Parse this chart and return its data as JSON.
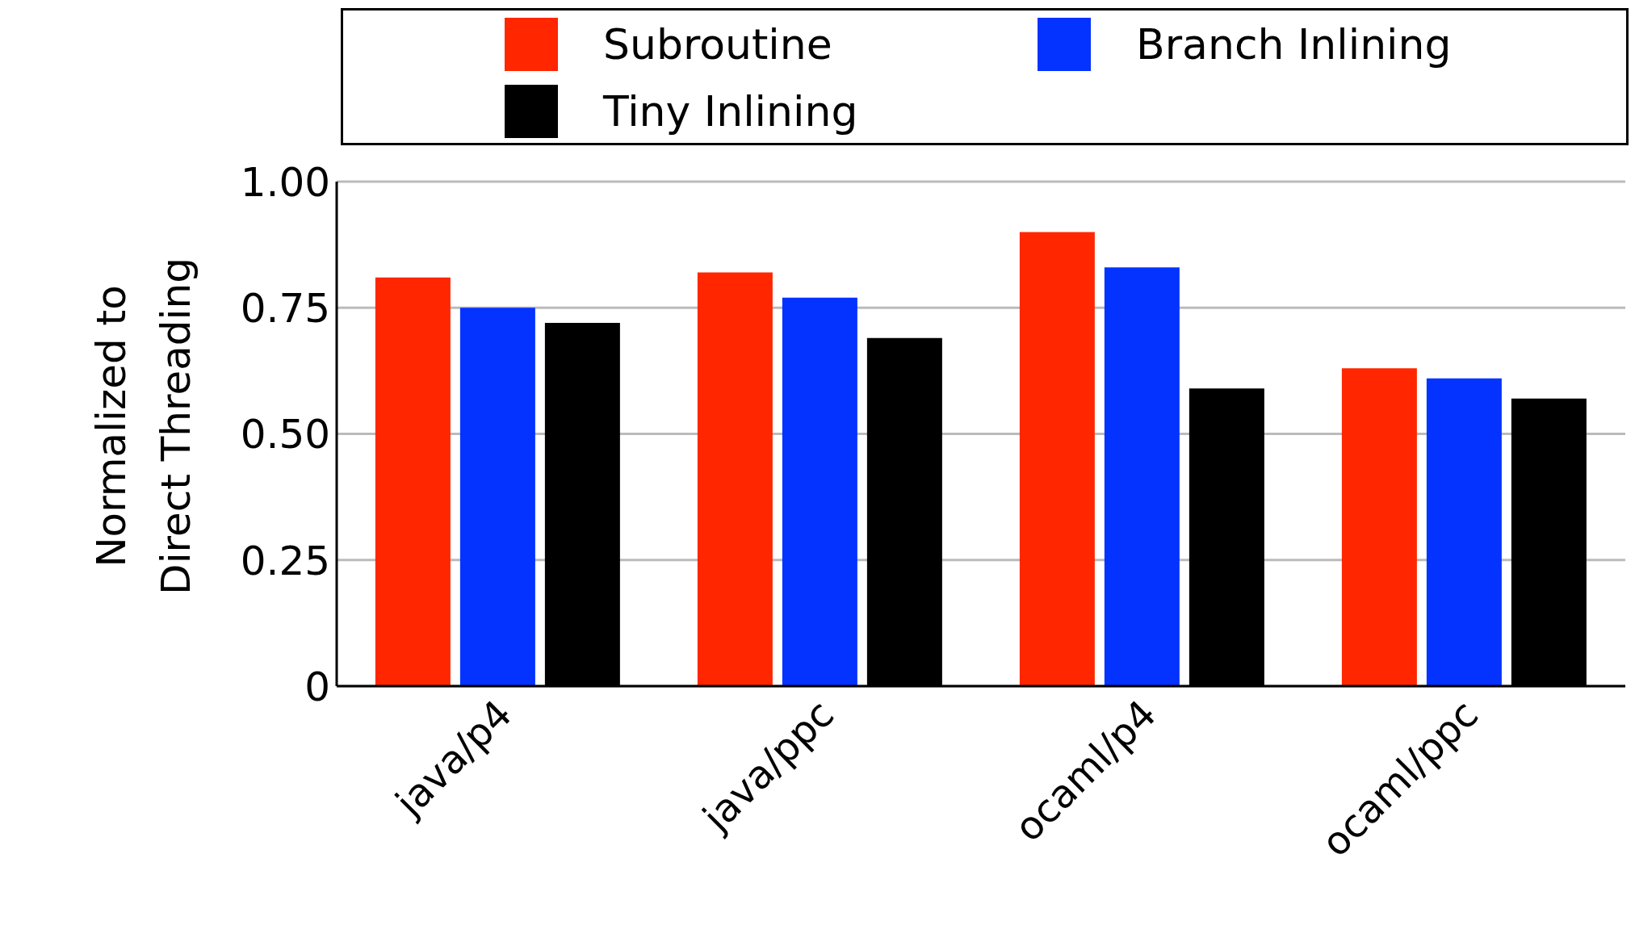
{
  "chart_data": {
    "type": "bar",
    "ylabel": "Normalized to Direct Threading",
    "categories": [
      "java/p4",
      "java/ppc",
      "ocaml/p4",
      "ocaml/ppc"
    ],
    "series": [
      {
        "name": "Subroutine",
        "color": "#ff2600",
        "values": [
          0.81,
          0.82,
          0.9,
          0.63
        ]
      },
      {
        "name": "Branch Inlining",
        "color": "#0433ff",
        "values": [
          0.75,
          0.77,
          0.83,
          0.61
        ]
      },
      {
        "name": "Tiny Inlining",
        "color": "#000000",
        "values": [
          0.72,
          0.69,
          0.59,
          0.57
        ]
      }
    ],
    "ylim": [
      0,
      1
    ],
    "yticks": [
      0,
      0.25,
      {
        "value": 0.5,
        "label": "0.50"
      },
      0.75,
      {
        "value": 1,
        "label": "1.00"
      }
    ],
    "grid": "y",
    "legend": "top"
  }
}
